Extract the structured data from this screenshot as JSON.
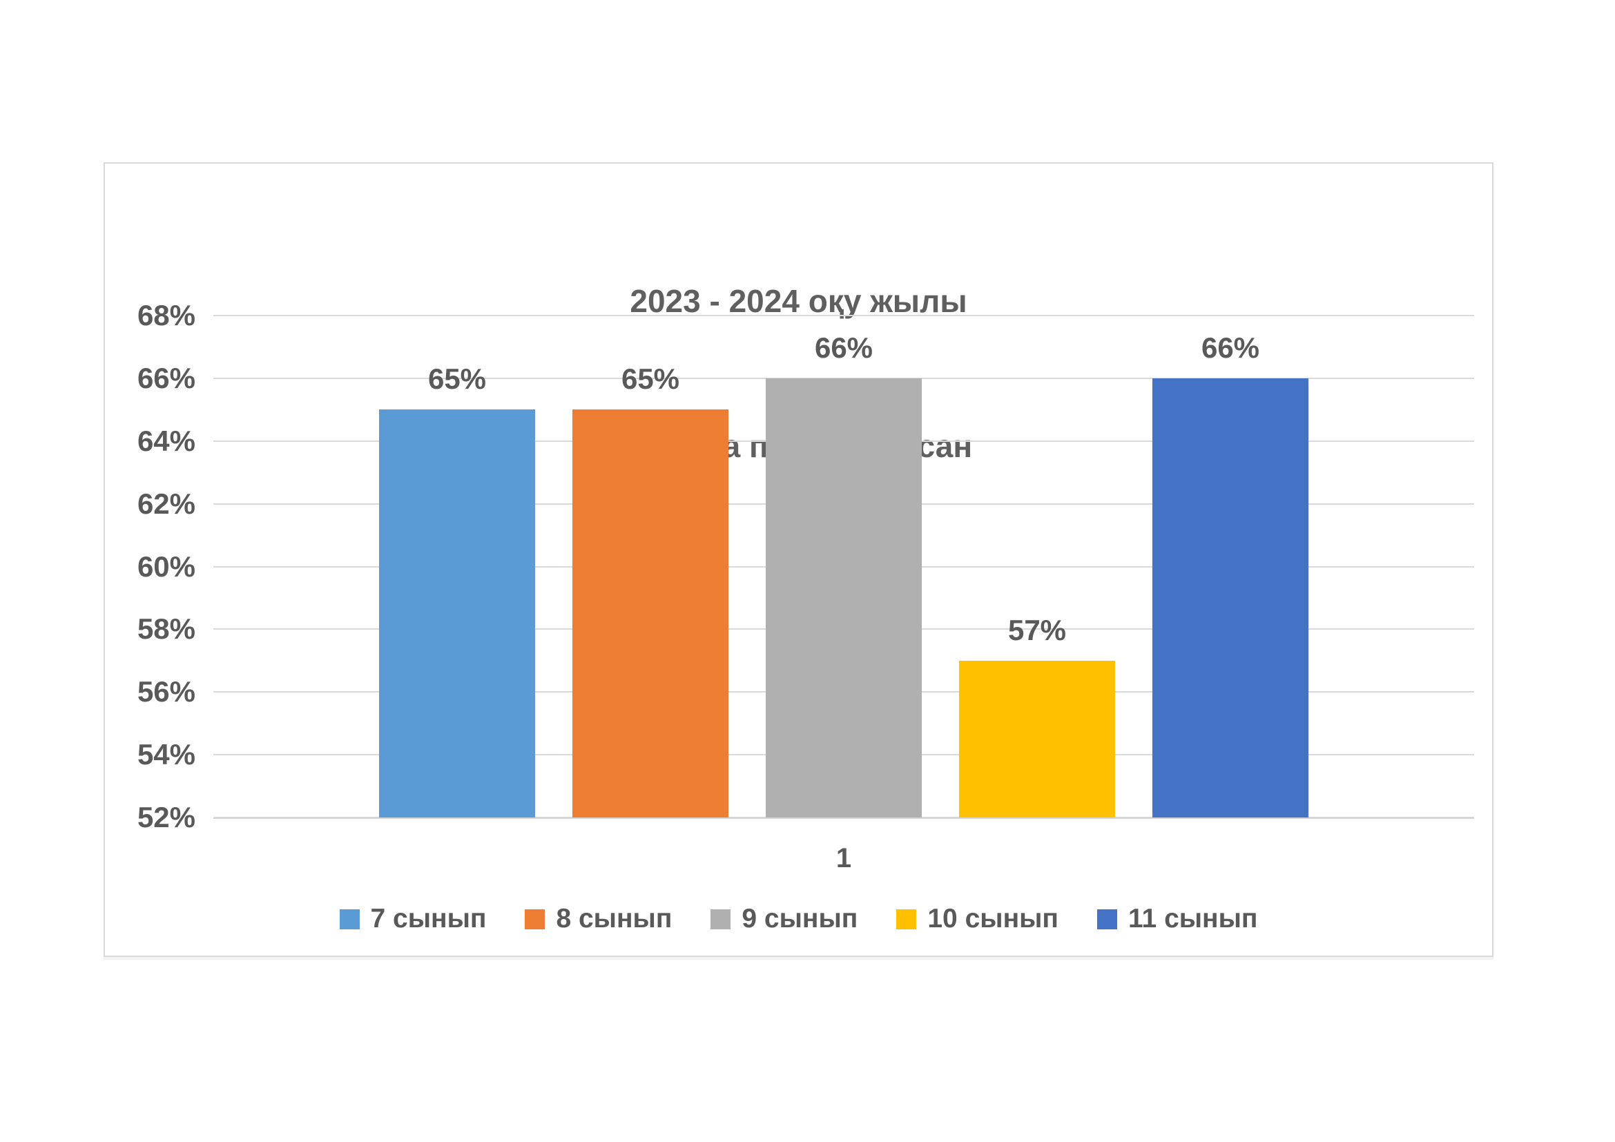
{
  "page": {
    "background": "#FFFFFF",
    "text_color": "#595959",
    "gridline_color": "#D9D9D9",
    "border_color": "#D9D9D9"
  },
  "chart_data": {
    "type": "bar",
    "title": "2023 - 2024 оқу жылы",
    "subtitle": "Физика пәні    I тоқсан",
    "categories": [
      "1"
    ],
    "series": [
      {
        "name": "7 сынып",
        "values": [
          65
        ],
        "data_label": "65%",
        "color": "#5B9BD5"
      },
      {
        "name": "8 сынып",
        "values": [
          65
        ],
        "data_label": "65%",
        "color": "#ED7D31"
      },
      {
        "name": "9 сынып",
        "values": [
          66
        ],
        "data_label": "66%",
        "color": "#B0B0B0"
      },
      {
        "name": "10 сынып",
        "values": [
          57
        ],
        "data_label": "57%",
        "color": "#FFC000"
      },
      {
        "name": "11 сынып",
        "values": [
          66
        ],
        "data_label": "66%",
        "color": "#4472C4"
      }
    ],
    "xlabel": "",
    "ylabel": "",
    "ylim": [
      52,
      68
    ],
    "ytick_step": 2,
    "ytick_labels": [
      "52%",
      "54%",
      "56%",
      "58%",
      "60%",
      "62%",
      "64%",
      "66%",
      "68%"
    ],
    "grid": true,
    "legend_position": "bottom"
  }
}
